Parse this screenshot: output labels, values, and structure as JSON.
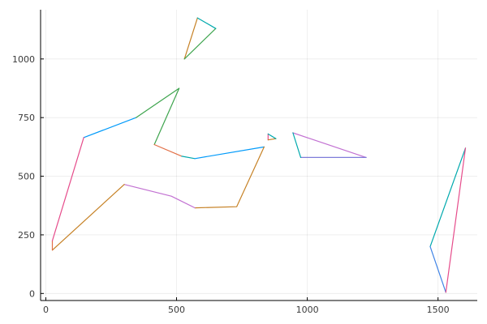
{
  "chart_data": {
    "type": "line",
    "title": "",
    "xlabel": "",
    "ylabel": "",
    "xlim": [
      -20,
      1650
    ],
    "ylim": [
      -30,
      1210
    ],
    "xticks": [
      0,
      500,
      1000,
      1500
    ],
    "yticks": [
      0,
      250,
      500,
      750,
      1000
    ],
    "xtick_labels": [
      "0",
      "500",
      "1000",
      "1500"
    ],
    "ytick_labels": [
      "0",
      "250",
      "500",
      "750",
      "1000"
    ],
    "grid": true,
    "legend": "none",
    "segments": [
      {
        "color": "#009AFA",
        "points": [
          [
            145,
            665
          ],
          [
            345,
            750
          ]
        ]
      },
      {
        "color": "#3DA44D",
        "points": [
          [
            345,
            750
          ],
          [
            510,
            875
          ],
          [
            415,
            635
          ]
        ]
      },
      {
        "color": "#E26F46",
        "points": [
          [
            415,
            635
          ],
          [
            520,
            585
          ]
        ]
      },
      {
        "color": "#00A9AD",
        "points": [
          [
            520,
            585
          ],
          [
            570,
            575
          ]
        ]
      },
      {
        "color": "#009AFA",
        "points": [
          [
            570,
            575
          ],
          [
            835,
            625
          ]
        ]
      },
      {
        "color": "#C68125",
        "points": [
          [
            835,
            625
          ],
          [
            730,
            370
          ],
          [
            570,
            365
          ]
        ]
      },
      {
        "color": "#C271D2",
        "points": [
          [
            570,
            365
          ],
          [
            480,
            415
          ],
          [
            300,
            465
          ]
        ]
      },
      {
        "color": "#C68125",
        "points": [
          [
            300,
            465
          ],
          [
            25,
            185
          ]
        ]
      },
      {
        "color": "#E26F46",
        "points": [
          [
            25,
            185
          ],
          [
            25,
            225
          ]
        ]
      },
      {
        "color": "#E64C8B",
        "points": [
          [
            25,
            225
          ],
          [
            145,
            665
          ]
        ]
      },
      {
        "color": "#C68125",
        "points": [
          [
            580,
            1175
          ],
          [
            530,
            1000
          ]
        ]
      },
      {
        "color": "#3DA44D",
        "points": [
          [
            530,
            1000
          ],
          [
            650,
            1130
          ]
        ]
      },
      {
        "color": "#00A9AD",
        "points": [
          [
            650,
            1130
          ],
          [
            580,
            1175
          ]
        ]
      },
      {
        "color": "#C271D2",
        "points": [
          [
            945,
            685
          ],
          [
            1225,
            580
          ]
        ]
      },
      {
        "color": "#7E7CD9",
        "points": [
          [
            1225,
            580
          ],
          [
            975,
            580
          ]
        ]
      },
      {
        "color": "#00A9AD",
        "points": [
          [
            975,
            580
          ],
          [
            945,
            685
          ]
        ]
      },
      {
        "color": "#E64C8B",
        "points": [
          [
            850,
            680
          ],
          [
            850,
            655
          ]
        ]
      },
      {
        "color": "#C68125",
        "points": [
          [
            850,
            655
          ],
          [
            880,
            660
          ]
        ]
      },
      {
        "color": "#00A9AD",
        "points": [
          [
            880,
            660
          ],
          [
            850,
            680
          ]
        ]
      },
      {
        "color": "#00A9AD",
        "points": [
          [
            1605,
            620
          ],
          [
            1470,
            200
          ]
        ]
      },
      {
        "color": "#3F83E6",
        "points": [
          [
            1470,
            200
          ],
          [
            1530,
            5
          ]
        ]
      },
      {
        "color": "#E64C8B",
        "points": [
          [
            1530,
            5
          ],
          [
            1605,
            620
          ]
        ]
      }
    ]
  }
}
